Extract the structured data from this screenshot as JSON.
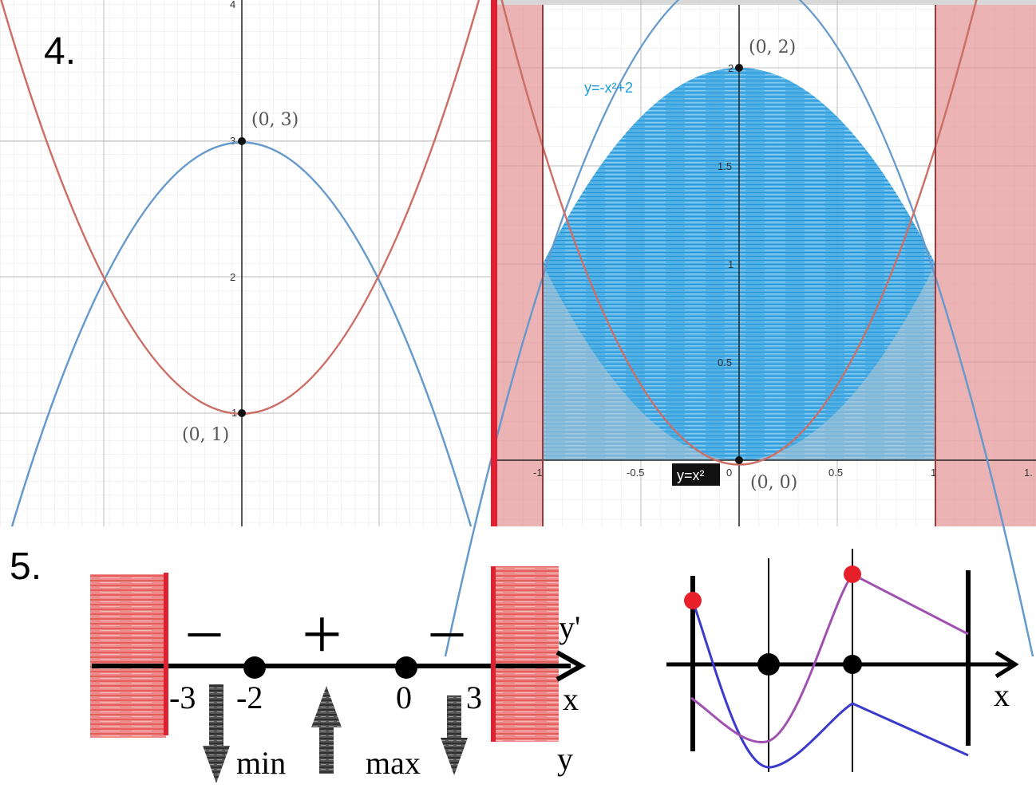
{
  "problem4": {
    "number": "4.",
    "left_graph": {
      "y_ticks": [
        "4",
        "3",
        "2",
        "1"
      ],
      "points": [
        {
          "label": "(0, 3)",
          "x": 0,
          "y": 3
        },
        {
          "label": "(0, 1)",
          "x": 0,
          "y": 1
        }
      ],
      "curves": [
        {
          "name": "upper",
          "color": "#6699cc"
        },
        {
          "name": "lower",
          "color": "#cc6f66"
        }
      ]
    },
    "right_graph": {
      "x_ticks": [
        "-1",
        "-0.5",
        "0",
        "0.5",
        "1",
        "1."
      ],
      "y_ticks": [
        "2",
        "1.5",
        "1",
        "0.5"
      ],
      "points": [
        {
          "label": "(0, 2)",
          "x": 0,
          "y": 2
        },
        {
          "label": "(0, 0)",
          "x": 0,
          "y": 0
        }
      ],
      "curve_labels": {
        "upper": "y=-x²+2",
        "lower": "y=x²"
      },
      "colors": {
        "upper": "#6699cc",
        "lower": "#cc6f66",
        "fill": "#1a9be0",
        "shade": "#e08a8a"
      }
    }
  },
  "problem5": {
    "number": "5.",
    "signs": [
      "–",
      "+",
      "–"
    ],
    "axis_top_label": "y'",
    "axis_right_label": "x",
    "axis_bottom_label": "y",
    "points": [
      "-3",
      "-2",
      "0",
      "3"
    ],
    "extrema": [
      "min",
      "max"
    ],
    "sketch_axis_label": "x",
    "colors": {
      "shade": "#e85a5a",
      "purple": "#a050b0",
      "blue": "#3a3acc",
      "red_dot": "#e8202a"
    }
  }
}
